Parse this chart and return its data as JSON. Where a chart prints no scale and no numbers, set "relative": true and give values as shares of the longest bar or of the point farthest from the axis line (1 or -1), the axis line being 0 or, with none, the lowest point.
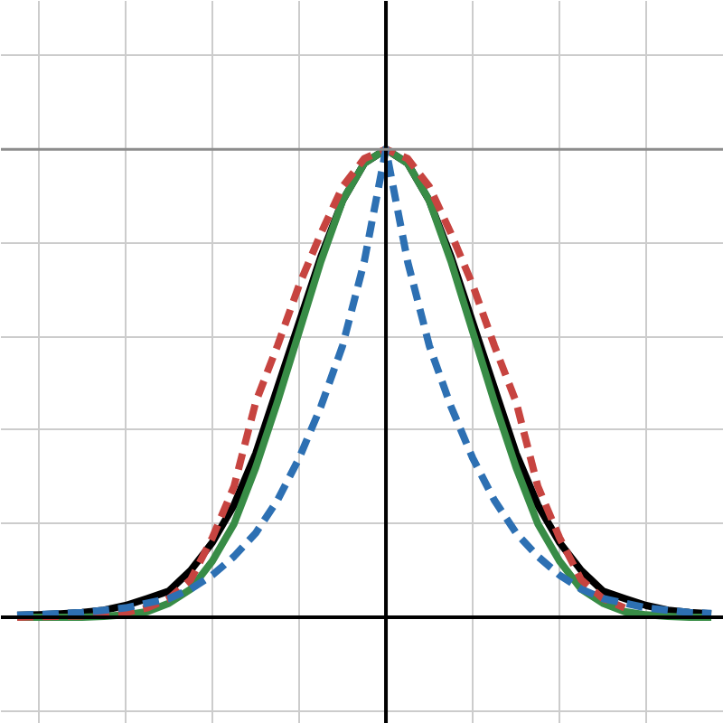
{
  "chart_data": {
    "type": "line",
    "relative": true,
    "grid": true,
    "marker": "none",
    "categories": [
      null,
      null,
      null,
      null,
      null,
      null,
      null,
      null,
      null,
      null,
      null,
      null,
      null,
      null,
      null,
      null,
      null,
      null,
      null,
      null,
      null,
      null,
      null,
      null,
      null,
      null,
      null,
      null,
      null,
      null,
      null,
      null,
      null
    ],
    "ref_lines": [
      {
        "axis": "y",
        "value": 1,
        "color": "#8c8c8c"
      }
    ],
    "series": [
      {
        "color": "#000000",
        "line_style": "solid",
        "values": [
          0.004,
          0.005,
          0.007,
          0.01,
          0.015,
          0.025,
          0.04,
          0.056,
          0.1,
          0.16,
          0.24,
          0.35,
          0.49,
          0.63,
          0.77,
          0.89,
          0.97,
          1,
          0.97,
          0.89,
          0.77,
          0.63,
          0.49,
          0.35,
          0.24,
          0.16,
          0.1,
          0.056,
          0.04,
          0.025,
          0.015,
          0.01,
          0.007
        ]
      },
      {
        "color": "#388c46",
        "line_style": "solid",
        "values": [
          0,
          0,
          0,
          0,
          0.002,
          0.005,
          0.012,
          0.03,
          0.06,
          0.12,
          0.2,
          0.32,
          0.46,
          0.61,
          0.76,
          0.89,
          0.97,
          1,
          0.97,
          0.89,
          0.76,
          0.61,
          0.46,
          0.32,
          0.2,
          0.12,
          0.06,
          0.03,
          0.012,
          0.005,
          0.002,
          0,
          0
        ]
      },
      {
        "color": "#c74440",
        "line_style": "dashed",
        "values": [
          0,
          0.001,
          0.002,
          0.003,
          0.005,
          0.01,
          0.02,
          0.04,
          0.08,
          0.17,
          0.28,
          0.46,
          0.58,
          0.71,
          0.82,
          0.92,
          0.98,
          1,
          0.98,
          0.92,
          0.82,
          0.71,
          0.58,
          0.46,
          0.28,
          0.17,
          0.08,
          0.04,
          0.02,
          null,
          null,
          null,
          null
        ]
      },
      {
        "color": "#2d70b3",
        "line_style": "dashed",
        "values": [
          0.004,
          0.006,
          0.008,
          0.01,
          0.015,
          0.02,
          0.03,
          0.04,
          0.06,
          0.09,
          0.13,
          0.18,
          0.25,
          0.34,
          0.45,
          0.58,
          0.76,
          1,
          0.76,
          0.58,
          0.45,
          0.34,
          0.25,
          0.18,
          0.13,
          0.09,
          0.06,
          0.04,
          0.03,
          0.02,
          0.015,
          0.01,
          0.008
        ]
      }
    ]
  }
}
